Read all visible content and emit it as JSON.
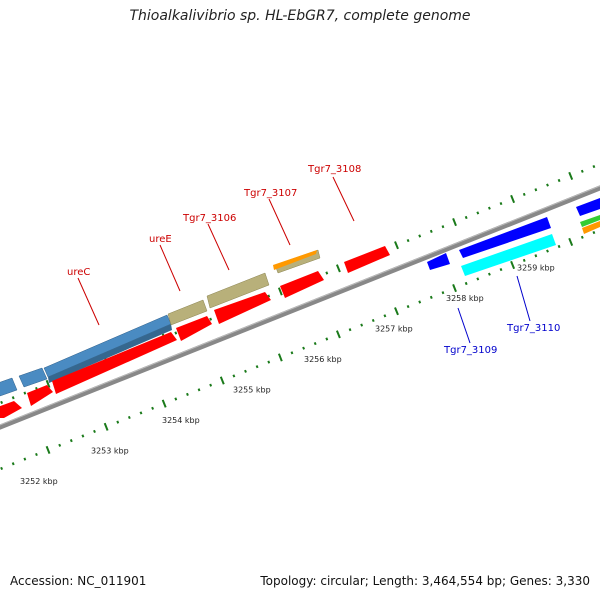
{
  "title": "Thioalkalivibrio sp. HL-EbGR7, complete genome",
  "accession": "Accession: NC_011901",
  "topology": "Topology: circular; Length: 3,464,554 bp; Genes: 3,330",
  "scale": {
    "unit": "kbp",
    "ticks": [
      {
        "kbp": 3252,
        "label": "3252 kbp"
      },
      {
        "kbp": 3253,
        "label": "3253 kbp"
      },
      {
        "kbp": 3254,
        "label": "3254 kbp"
      },
      {
        "kbp": 3255,
        "label": "3255 kbp"
      },
      {
        "kbp": 3256,
        "label": "3256 kbp"
      },
      {
        "kbp": 3257,
        "label": "3257 kbp"
      },
      {
        "kbp": 3258,
        "label": "3258 kbp"
      },
      {
        "kbp": 3259,
        "label": "3259 kbp"
      }
    ]
  },
  "colors": {
    "backbone": "#888888",
    "tick": "#1a7a1a",
    "forward_label": "#cc0000",
    "reverse_label": "#0000cc",
    "cds_red": "#ff0000",
    "blue_gene": "#4a8bc2",
    "khaki_gene": "#b8b07a",
    "orange_gene": "#ff9900",
    "dark_blue_gene": "#0000ff",
    "cyan_gene": "#00ffff",
    "green_gene": "#33cc33"
  },
  "gene_labels": [
    {
      "name": "ureC",
      "color": "#cc0000"
    },
    {
      "name": "ureE",
      "color": "#cc0000"
    },
    {
      "name": "Tgr7_3106",
      "color": "#cc0000"
    },
    {
      "name": "Tgr7_3107",
      "color": "#cc0000"
    },
    {
      "name": "Tgr7_3108",
      "color": "#cc0000"
    },
    {
      "name": "Tgr7_3109",
      "color": "#0000cc"
    },
    {
      "name": "Tgr7_3110",
      "color": "#0000cc"
    }
  ]
}
